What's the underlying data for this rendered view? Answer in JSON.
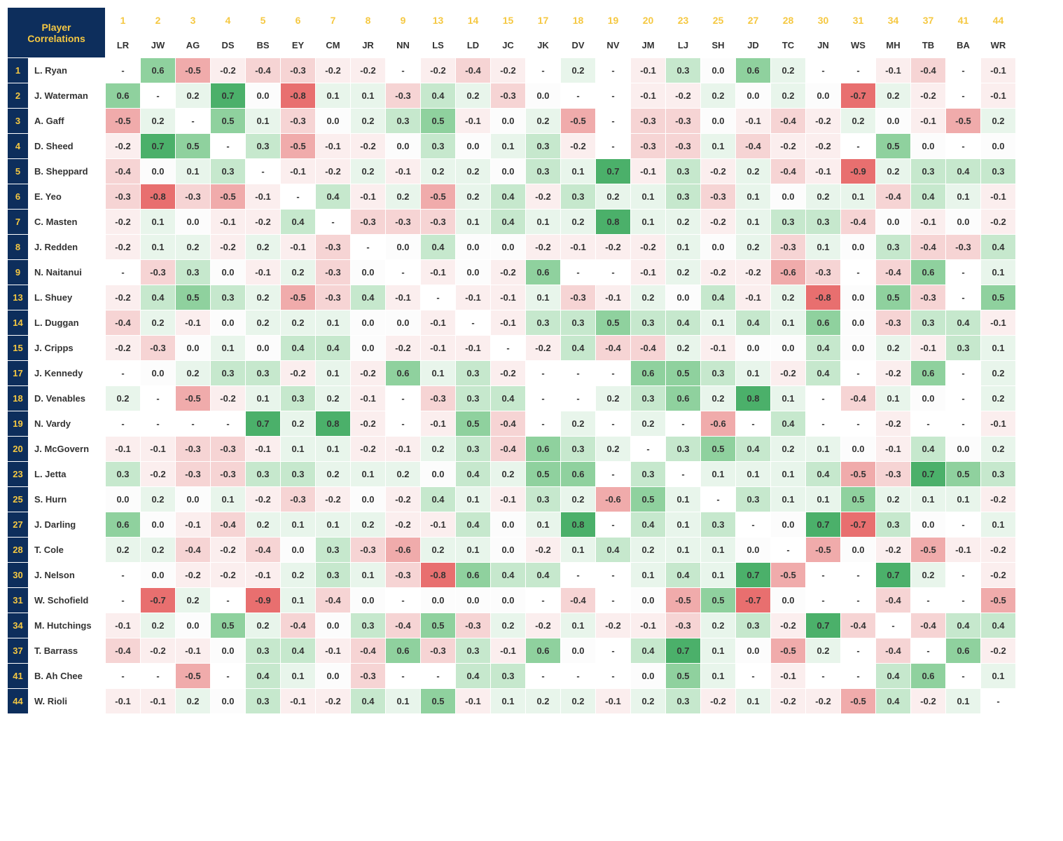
{
  "title": "Player Correlations",
  "header_bg": "#0d2e5c",
  "header_num_color": "#f5c842",
  "header_init_color": "#333333",
  "colors": {
    "pos_strong": "#4bb06a",
    "pos_med": "#8fd19e",
    "pos_weak": "#c6e8cd",
    "pos_faint": "#e8f5eb",
    "zero": "#fcfcfc",
    "neg_faint": "#fbeeee",
    "neg_weak": "#f6d4d4",
    "neg_med": "#f0abab",
    "neg_strong": "#e86f6f"
  },
  "players": [
    {
      "num": "1",
      "init": "LR",
      "name": "L. Ryan"
    },
    {
      "num": "2",
      "init": "JW",
      "name": "J. Waterman"
    },
    {
      "num": "3",
      "init": "AG",
      "name": "A. Gaff"
    },
    {
      "num": "4",
      "init": "DS",
      "name": "D. Sheed"
    },
    {
      "num": "5",
      "init": "BS",
      "name": "B. Sheppard"
    },
    {
      "num": "6",
      "init": "EY",
      "name": "E. Yeo"
    },
    {
      "num": "7",
      "init": "CM",
      "name": "C. Masten"
    },
    {
      "num": "8",
      "init": "JR",
      "name": "J. Redden"
    },
    {
      "num": "9",
      "init": "NN",
      "name": "N. Naitanui"
    },
    {
      "num": "13",
      "init": "LS",
      "name": "L. Shuey"
    },
    {
      "num": "14",
      "init": "LD",
      "name": "L. Duggan"
    },
    {
      "num": "15",
      "init": "JC",
      "name": "J. Cripps"
    },
    {
      "num": "17",
      "init": "JK",
      "name": "J. Kennedy"
    },
    {
      "num": "18",
      "init": "DV",
      "name": "D. Venables"
    },
    {
      "num": "19",
      "init": "NV",
      "name": "N. Vardy"
    },
    {
      "num": "20",
      "init": "JM",
      "name": "J. McGovern"
    },
    {
      "num": "23",
      "init": "LJ",
      "name": "L. Jetta"
    },
    {
      "num": "25",
      "init": "SH",
      "name": "S. Hurn"
    },
    {
      "num": "27",
      "init": "JD",
      "name": "J. Darling"
    },
    {
      "num": "28",
      "init": "TC",
      "name": "T. Cole"
    },
    {
      "num": "30",
      "init": "JN",
      "name": "J. Nelson"
    },
    {
      "num": "31",
      "init": "WS",
      "name": "W. Schofield"
    },
    {
      "num": "34",
      "init": "MH",
      "name": "M. Hutchings"
    },
    {
      "num": "37",
      "init": "TB",
      "name": "T. Barrass"
    },
    {
      "num": "41",
      "init": "BA",
      "name": "B. Ah Chee"
    },
    {
      "num": "44",
      "init": "WR",
      "name": "W. Rioli"
    }
  ],
  "matrix": [
    [
      "-",
      "0.6",
      "-0.5",
      "-0.2",
      "-0.4",
      "-0.3",
      "-0.2",
      "-0.2",
      "-",
      "-0.2",
      "-0.4",
      "-0.2",
      "-",
      "0.2",
      "-",
      "-0.1",
      "0.3",
      "0.0",
      "0.6",
      "0.2",
      "-",
      "-",
      "-0.1",
      "-0.4",
      "-",
      "-0.1"
    ],
    [
      "0.6",
      "-",
      "0.2",
      "0.7",
      "0.0",
      "-0.8",
      "0.1",
      "0.1",
      "-0.3",
      "0.4",
      "0.2",
      "-0.3",
      "0.0",
      "-",
      "-",
      "-0.1",
      "-0.2",
      "0.2",
      "0.0",
      "0.2",
      "0.0",
      "-0.7",
      "0.2",
      "-0.2",
      "-",
      "-0.1"
    ],
    [
      "-0.5",
      "0.2",
      "-",
      "0.5",
      "0.1",
      "-0.3",
      "0.0",
      "0.2",
      "0.3",
      "0.5",
      "-0.1",
      "0.0",
      "0.2",
      "-0.5",
      "-",
      "-0.3",
      "-0.3",
      "0.0",
      "-0.1",
      "-0.4",
      "-0.2",
      "0.2",
      "0.0",
      "-0.1",
      "-0.5",
      "0.2"
    ],
    [
      "-0.2",
      "0.7",
      "0.5",
      "-",
      "0.3",
      "-0.5",
      "-0.1",
      "-0.2",
      "0.0",
      "0.3",
      "0.0",
      "0.1",
      "0.3",
      "-0.2",
      "-",
      "-0.3",
      "-0.3",
      "0.1",
      "-0.4",
      "-0.2",
      "-0.2",
      "-",
      "0.5",
      "0.0",
      "-",
      "0.0"
    ],
    [
      "-0.4",
      "0.0",
      "0.1",
      "0.3",
      "-",
      "-0.1",
      "-0.2",
      "0.2",
      "-0.1",
      "0.2",
      "0.2",
      "0.0",
      "0.3",
      "0.1",
      "0.7",
      "-0.1",
      "0.3",
      "-0.2",
      "0.2",
      "-0.4",
      "-0.1",
      "-0.9",
      "0.2",
      "0.3",
      "0.4",
      "0.3"
    ],
    [
      "-0.3",
      "-0.8",
      "-0.3",
      "-0.5",
      "-0.1",
      "-",
      "0.4",
      "-0.1",
      "0.2",
      "-0.5",
      "0.2",
      "0.4",
      "-0.2",
      "0.3",
      "0.2",
      "0.1",
      "0.3",
      "-0.3",
      "0.1",
      "0.0",
      "0.2",
      "0.1",
      "-0.4",
      "0.4",
      "0.1",
      "-0.1"
    ],
    [
      "-0.2",
      "0.1",
      "0.0",
      "-0.1",
      "-0.2",
      "0.4",
      "-",
      "-0.3",
      "-0.3",
      "-0.3",
      "0.1",
      "0.4",
      "0.1",
      "0.2",
      "0.8",
      "0.1",
      "0.2",
      "-0.2",
      "0.1",
      "0.3",
      "0.3",
      "-0.4",
      "0.0",
      "-0.1",
      "0.0",
      "-0.2"
    ],
    [
      "-0.2",
      "0.1",
      "0.2",
      "-0.2",
      "0.2",
      "-0.1",
      "-0.3",
      "-",
      "0.0",
      "0.4",
      "0.0",
      "0.0",
      "-0.2",
      "-0.1",
      "-0.2",
      "-0.2",
      "0.1",
      "0.0",
      "0.2",
      "-0.3",
      "0.1",
      "0.0",
      "0.3",
      "-0.4",
      "-0.3",
      "0.4"
    ],
    [
      "-",
      "-0.3",
      "0.3",
      "0.0",
      "-0.1",
      "0.2",
      "-0.3",
      "0.0",
      "-",
      "-0.1",
      "0.0",
      "-0.2",
      "0.6",
      "-",
      "-",
      "-0.1",
      "0.2",
      "-0.2",
      "-0.2",
      "-0.6",
      "-0.3",
      "-",
      "-0.4",
      "0.6",
      "-",
      "0.1"
    ],
    [
      "-0.2",
      "0.4",
      "0.5",
      "0.3",
      "0.2",
      "-0.5",
      "-0.3",
      "0.4",
      "-0.1",
      "-",
      "-0.1",
      "-0.1",
      "0.1",
      "-0.3",
      "-0.1",
      "0.2",
      "0.0",
      "0.4",
      "-0.1",
      "0.2",
      "-0.8",
      "0.0",
      "0.5",
      "-0.3",
      "-",
      "0.5"
    ],
    [
      "-0.4",
      "0.2",
      "-0.1",
      "0.0",
      "0.2",
      "0.2",
      "0.1",
      "0.0",
      "0.0",
      "-0.1",
      "-",
      "-0.1",
      "0.3",
      "0.3",
      "0.5",
      "0.3",
      "0.4",
      "0.1",
      "0.4",
      "0.1",
      "0.6",
      "0.0",
      "-0.3",
      "0.3",
      "0.4",
      "-0.1"
    ],
    [
      "-0.2",
      "-0.3",
      "0.0",
      "0.1",
      "0.0",
      "0.4",
      "0.4",
      "0.0",
      "-0.2",
      "-0.1",
      "-0.1",
      "-",
      "-0.2",
      "0.4",
      "-0.4",
      "-0.4",
      "0.2",
      "-0.1",
      "0.0",
      "0.0",
      "0.4",
      "0.0",
      "0.2",
      "-0.1",
      "0.3",
      "0.1"
    ],
    [
      "-",
      "0.0",
      "0.2",
      "0.3",
      "0.3",
      "-0.2",
      "0.1",
      "-0.2",
      "0.6",
      "0.1",
      "0.3",
      "-0.2",
      "-",
      "-",
      "-",
      "0.6",
      "0.5",
      "0.3",
      "0.1",
      "-0.2",
      "0.4",
      "-",
      "-0.2",
      "0.6",
      "-",
      "0.2"
    ],
    [
      "0.2",
      "-",
      "-0.5",
      "-0.2",
      "0.1",
      "0.3",
      "0.2",
      "-0.1",
      "-",
      "-0.3",
      "0.3",
      "0.4",
      "-",
      "-",
      "0.2",
      "0.3",
      "0.6",
      "0.2",
      "0.8",
      "0.1",
      "-",
      "-0.4",
      "0.1",
      "0.0",
      "-",
      "0.2"
    ],
    [
      "-",
      "-",
      "-",
      "-",
      "0.7",
      "0.2",
      "0.8",
      "-0.2",
      "-",
      "-0.1",
      "0.5",
      "-0.4",
      "-",
      "0.2",
      "-",
      "0.2",
      "-",
      "-0.6",
      "-",
      "0.4",
      "-",
      "-",
      "-0.2",
      "-",
      "-",
      "-0.1"
    ],
    [
      "-0.1",
      "-0.1",
      "-0.3",
      "-0.3",
      "-0.1",
      "0.1",
      "0.1",
      "-0.2",
      "-0.1",
      "0.2",
      "0.3",
      "-0.4",
      "0.6",
      "0.3",
      "0.2",
      "-",
      "0.3",
      "0.5",
      "0.4",
      "0.2",
      "0.1",
      "0.0",
      "-0.1",
      "0.4",
      "0.0",
      "0.2"
    ],
    [
      "0.3",
      "-0.2",
      "-0.3",
      "-0.3",
      "0.3",
      "0.3",
      "0.2",
      "0.1",
      "0.2",
      "0.0",
      "0.4",
      "0.2",
      "0.5",
      "0.6",
      "-",
      "0.3",
      "-",
      "0.1",
      "0.1",
      "0.1",
      "0.4",
      "-0.5",
      "-0.3",
      "0.7",
      "0.5",
      "0.3"
    ],
    [
      "0.0",
      "0.2",
      "0.0",
      "0.1",
      "-0.2",
      "-0.3",
      "-0.2",
      "0.0",
      "-0.2",
      "0.4",
      "0.1",
      "-0.1",
      "0.3",
      "0.2",
      "-0.6",
      "0.5",
      "0.1",
      "-",
      "0.3",
      "0.1",
      "0.1",
      "0.5",
      "0.2",
      "0.1",
      "0.1",
      "-0.2"
    ],
    [
      "0.6",
      "0.0",
      "-0.1",
      "-0.4",
      "0.2",
      "0.1",
      "0.1",
      "0.2",
      "-0.2",
      "-0.1",
      "0.4",
      "0.0",
      "0.1",
      "0.8",
      "-",
      "0.4",
      "0.1",
      "0.3",
      "-",
      "0.0",
      "0.7",
      "-0.7",
      "0.3",
      "0.0",
      "-",
      "0.1"
    ],
    [
      "0.2",
      "0.2",
      "-0.4",
      "-0.2",
      "-0.4",
      "0.0",
      "0.3",
      "-0.3",
      "-0.6",
      "0.2",
      "0.1",
      "0.0",
      "-0.2",
      "0.1",
      "0.4",
      "0.2",
      "0.1",
      "0.1",
      "0.0",
      "-",
      "-0.5",
      "0.0",
      "-0.2",
      "-0.5",
      "-0.1",
      "-0.2"
    ],
    [
      "-",
      "0.0",
      "-0.2",
      "-0.2",
      "-0.1",
      "0.2",
      "0.3",
      "0.1",
      "-0.3",
      "-0.8",
      "0.6",
      "0.4",
      "0.4",
      "-",
      "-",
      "0.1",
      "0.4",
      "0.1",
      "0.7",
      "-0.5",
      "-",
      "-",
      "0.7",
      "0.2",
      "-",
      "-0.2"
    ],
    [
      "-",
      "-0.7",
      "0.2",
      "-",
      "-0.9",
      "0.1",
      "-0.4",
      "0.0",
      "-",
      "0.0",
      "0.0",
      "0.0",
      "-",
      "-0.4",
      "-",
      "0.0",
      "-0.5",
      "0.5",
      "-0.7",
      "0.0",
      "-",
      "-",
      "-0.4",
      "-",
      "-",
      "-0.5"
    ],
    [
      "-0.1",
      "0.2",
      "0.0",
      "0.5",
      "0.2",
      "-0.4",
      "0.0",
      "0.3",
      "-0.4",
      "0.5",
      "-0.3",
      "0.2",
      "-0.2",
      "0.1",
      "-0.2",
      "-0.1",
      "-0.3",
      "0.2",
      "0.3",
      "-0.2",
      "0.7",
      "-0.4",
      "-",
      "-0.4",
      "0.4",
      "0.4"
    ],
    [
      "-0.4",
      "-0.2",
      "-0.1",
      "0.0",
      "0.3",
      "0.4",
      "-0.1",
      "-0.4",
      "0.6",
      "-0.3",
      "0.3",
      "-0.1",
      "0.6",
      "0.0",
      "-",
      "0.4",
      "0.7",
      "0.1",
      "0.0",
      "-0.5",
      "0.2",
      "-",
      "-0.4",
      "-",
      "0.6",
      "-0.2"
    ],
    [
      "-",
      "-",
      "-0.5",
      "-",
      "0.4",
      "0.1",
      "0.0",
      "-0.3",
      "-",
      "-",
      "0.4",
      "0.3",
      "-",
      "-",
      "-",
      "0.0",
      "0.5",
      "0.1",
      "-",
      "-0.1",
      "-",
      "-",
      "0.4",
      "0.6",
      "-",
      "0.1"
    ],
    [
      "-0.1",
      "-0.1",
      "0.2",
      "0.0",
      "0.3",
      "-0.1",
      "-0.2",
      "0.4",
      "0.1",
      "0.5",
      "-0.1",
      "0.1",
      "0.2",
      "0.2",
      "-0.1",
      "0.2",
      "0.3",
      "-0.2",
      "0.1",
      "-0.2",
      "-0.2",
      "-0.5",
      "0.4",
      "-0.2",
      "0.1",
      "-"
    ]
  ]
}
